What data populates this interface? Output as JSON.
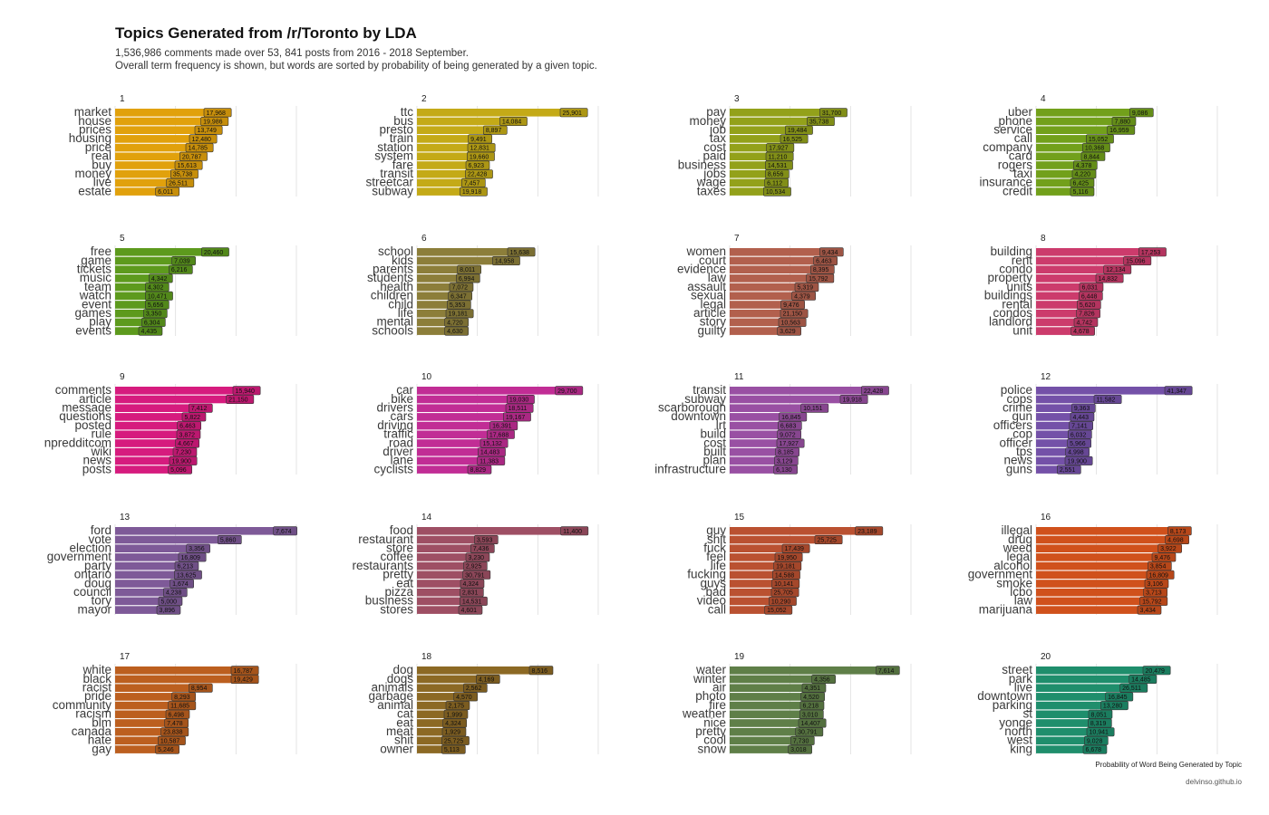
{
  "title": "Topics Generated from /r/Toronto by LDA",
  "subtitle_line1": "1,536,986 comments made over 53, 841 posts from 2016 - 2018 September.",
  "subtitle_line2": "Overall term frequency is shown, but words are sorted by probability of being generated by a given topic.",
  "caption": "delvinso.github.io",
  "chart_data": {
    "type": "bar",
    "orientation": "horizontal",
    "facets": "5 rows x 4 columns",
    "xlabel": "Probability of Word Being Generated by Topic",
    "grid": true,
    "note": "Bar length = probability (estimated, x axis unlabeled); box label = overall term frequency",
    "panels": [
      {
        "topic": "1",
        "color": "#E1A10C",
        "terms": [
          "market",
          "house",
          "prices",
          "housing",
          "price",
          "real",
          "buy",
          "money",
          "live",
          "estate"
        ],
        "probability": [
          0.015,
          0.0145,
          0.0135,
          0.0126,
          0.012,
          0.011,
          0.0102,
          0.0095,
          0.0088,
          0.007
        ],
        "frequency": [
          "17,968",
          "19,986",
          "13,749",
          "12,480",
          "14,785",
          "20,787",
          "15,613",
          "35,738",
          "26,511",
          "6,011"
        ]
      },
      {
        "topic": "2",
        "color": "#C4AA17",
        "terms": [
          "ttc",
          "bus",
          "presto",
          "train",
          "station",
          "system",
          "fare",
          "transit",
          "streetcar",
          "subway"
        ],
        "probability": [
          0.024,
          0.014,
          0.0113,
          0.0088,
          0.0087,
          0.0086,
          0.0084,
          0.0083,
          0.0077,
          0.0074
        ],
        "frequency": [
          "25,901",
          "14,084",
          "8,897",
          "9,491",
          "12,831",
          "19,660",
          "6,923",
          "22,428",
          "7,457",
          "19,918"
        ]
      },
      {
        "topic": "3",
        "color": "#93A11A",
        "terms": [
          "pay",
          "money",
          "job",
          "tax",
          "cost",
          "paid",
          "business",
          "jobs",
          "wage",
          "taxes"
        ],
        "probability": [
          0.0152,
          0.0131,
          0.0095,
          0.0087,
          0.0064,
          0.0063,
          0.0062,
          0.0062,
          0.0061,
          0.0059
        ],
        "frequency": [
          "31,700",
          "35,738",
          "19,484",
          "16,525",
          "17,927",
          "11,210",
          "14,531",
          "8,656",
          "6,112",
          "10,534"
        ]
      },
      {
        "topic": "4",
        "color": "#72A01B",
        "terms": [
          "uber",
          "phone",
          "service",
          "call",
          "company",
          "card",
          "rogers",
          "taxi",
          "insurance",
          "credit"
        ],
        "probability": [
          0.0158,
          0.0129,
          0.0121,
          0.0086,
          0.008,
          0.0078,
          0.0065,
          0.0063,
          0.006,
          0.006
        ],
        "frequency": [
          "9,086",
          "7,880",
          "16,959",
          "15,052",
          "10,368",
          "8,844",
          "4,378",
          "4,220",
          "6,425",
          "5,116"
        ]
      },
      {
        "topic": "5",
        "color": "#5D9A1D",
        "terms": [
          "free",
          "game",
          "tickets",
          "music",
          "team",
          "watch",
          "event",
          "games",
          "play",
          "events"
        ],
        "probability": [
          0.0146,
          0.0097,
          0.0092,
          0.0059,
          0.0053,
          0.0053,
          0.0053,
          0.005,
          0.0047,
          0.0042
        ],
        "frequency": [
          "20,460",
          "7,039",
          "6,216",
          "4,342",
          "4,302",
          "10,471",
          "5,656",
          "3,350",
          "6,304",
          "4,435"
        ]
      },
      {
        "topic": "6",
        "color": "#8C7E3A",
        "terms": [
          "school",
          "kids",
          "parents",
          "students",
          "health",
          "children",
          "child",
          "life",
          "mental",
          "schools"
        ],
        "probability": [
          0.0153,
          0.0128,
          0.007,
          0.0068,
          0.0057,
          0.0055,
          0.0053,
          0.0051,
          0.0049,
          0.0049
        ],
        "frequency": [
          "15,638",
          "14,958",
          "8,011",
          "6,994",
          "7,072",
          "6,347",
          "5,353",
          "19,181",
          "4,720",
          "4,630"
        ]
      },
      {
        "topic": "7",
        "color": "#B2604D",
        "terms": [
          "women",
          "court",
          "evidence",
          "law",
          "assault",
          "sexual",
          "legal",
          "article",
          "story",
          "guilty"
        ],
        "probability": [
          0.0152,
          0.0142,
          0.0137,
          0.013,
          0.0111,
          0.0106,
          0.0088,
          0.0087,
          0.0084,
          0.0082
        ],
        "frequency": [
          "9,434",
          "6,463",
          "8,395",
          "15,792",
          "5,319",
          "4,379",
          "9,476",
          "21,150",
          "10,563",
          "3,629"
        ]
      },
      {
        "topic": "8",
        "color": "#CC3B6C",
        "terms": [
          "building",
          "rent",
          "condo",
          "property",
          "units",
          "buildings",
          "rental",
          "condos",
          "landlord",
          "unit"
        ],
        "probability": [
          0.0173,
          0.0148,
          0.0115,
          0.0102,
          0.0075,
          0.0074,
          0.0071,
          0.007,
          0.0066,
          0.0061
        ],
        "frequency": [
          "17,253",
          "15,096",
          "12,134",
          "14,832",
          "6,031",
          "6,448",
          "5,620",
          "7,826",
          "4,742",
          "4,678"
        ]
      },
      {
        "topic": "9",
        "color": "#D61B7E",
        "terms": [
          "comments",
          "article",
          "message",
          "questions",
          "posted",
          "rule",
          "npredditcom",
          "wiki",
          "news",
          "posts"
        ],
        "probability": [
          0.0198,
          0.0187,
          0.0125,
          0.0114,
          0.0106,
          0.0105,
          0.0103,
          0.0099,
          0.0093,
          0.0091
        ],
        "frequency": [
          "15,940",
          "21,150",
          "7,412",
          "5,822",
          "6,463",
          "3,872",
          "4,667",
          "7,230",
          "19,900",
          "5,096"
        ]
      },
      {
        "topic": "10",
        "color": "#C12D95",
        "terms": [
          "car",
          "bike",
          "drivers",
          "cars",
          "driving",
          "traffic",
          "road",
          "driver",
          "lane",
          "cyclists"
        ],
        "probability": [
          0.0232,
          0.0152,
          0.015,
          0.0146,
          0.0124,
          0.0119,
          0.0108,
          0.0104,
          0.0103,
          0.0087
        ],
        "frequency": [
          "29,700",
          "19,030",
          "18,511",
          "19,167",
          "16,391",
          "17,688",
          "15,132",
          "14,483",
          "11,383",
          "8,829"
        ]
      },
      {
        "topic": "11",
        "color": "#9950A3",
        "terms": [
          "transit",
          "subway",
          "scarborough",
          "downtown",
          "lrt",
          "build",
          "cost",
          "built",
          "plan",
          "infrastructure"
        ],
        "probability": [
          0.0221,
          0.0186,
          0.0121,
          0.0085,
          0.0083,
          0.0082,
          0.0081,
          0.0079,
          0.0077,
          0.0076
        ],
        "frequency": [
          "22,428",
          "19,918",
          "10,151",
          "16,845",
          "6,683",
          "9,072",
          "17,927",
          "8,185",
          "3,129",
          "6,130"
        ]
      },
      {
        "topic": "12",
        "color": "#7451A8",
        "terms": [
          "police",
          "cops",
          "crime",
          "gun",
          "officers",
          "cop",
          "officer",
          "tps",
          "news",
          "guns"
        ],
        "probability": [
          0.0216,
          0.0099,
          0.0062,
          0.006,
          0.0058,
          0.0056,
          0.0055,
          0.0052,
          0.0051,
          0.0038
        ],
        "frequency": [
          "41,347",
          "11,582",
          "9,363",
          "4,443",
          "7,141",
          "6,032",
          "5,966",
          "4,998",
          "19,900",
          "2,551"
        ]
      },
      {
        "topic": "13",
        "color": "#7E5A98",
        "terms": [
          "ford",
          "vote",
          "election",
          "government",
          "party",
          "ontario",
          "doug",
          "council",
          "tory",
          "mayor"
        ],
        "probability": [
          0.0265,
          0.0173,
          0.0121,
          0.0108,
          0.0102,
          0.0101,
          0.0094,
          0.0083,
          0.0075,
          0.0072
        ],
        "frequency": [
          "7,674",
          "5,860",
          "3,356",
          "16,809",
          "6,213",
          "13,625",
          "1,674",
          "4,238",
          "5,000",
          "3,896"
        ]
      },
      {
        "topic": "14",
        "color": "#9E4F64",
        "terms": [
          "food",
          "restaurant",
          "store",
          "coffee",
          "restaurants",
          "pretty",
          "eat",
          "pizza",
          "business",
          "stores"
        ],
        "probability": [
          0.0241,
          0.0098,
          0.0092,
          0.0084,
          0.008,
          0.0079,
          0.0075,
          0.0074,
          0.0074,
          0.0072
        ],
        "frequency": [
          "11,400",
          "3,593",
          "7,436",
          "3,230",
          "2,925",
          "30,791",
          "4,324",
          "2,831",
          "14,531",
          "4,601"
        ]
      },
      {
        "topic": "15",
        "color": "#BA5131",
        "terms": [
          "guy",
          "shit",
          "fuck",
          "feel",
          "life",
          "fucking",
          "guys",
          "bad",
          "video",
          "call"
        ],
        "probability": [
          0.0211,
          0.0144,
          0.009,
          0.0078,
          0.0076,
          0.0074,
          0.0073,
          0.0072,
          0.0068,
          0.0061
        ],
        "frequency": [
          "23,189",
          "25,725",
          "17,439",
          "19,950",
          "19,181",
          "14,588",
          "10,141",
          "25,705",
          "10,290",
          "15,052"
        ]
      },
      {
        "topic": "16",
        "color": "#D0511C",
        "terms": [
          "illegal",
          "drug",
          "weed",
          "legal",
          "alcohol",
          "government",
          "smoke",
          "lcbo",
          "law",
          "marijuana"
        ],
        "probability": [
          0.0221,
          0.0217,
          0.0205,
          0.0195,
          0.0188,
          0.0186,
          0.0183,
          0.0181,
          0.0175,
          0.0171
        ],
        "frequency": [
          "8,173",
          "4,698",
          "3,922",
          "9,476",
          "3,854",
          "16,809",
          "3,106",
          "3,713",
          "15,792",
          "3,434"
        ]
      },
      {
        "topic": "17",
        "color": "#BC5F1F",
        "terms": [
          "white",
          "black",
          "racist",
          "pride",
          "community",
          "racism",
          "blm",
          "canada",
          "hate",
          "gay"
        ],
        "probability": [
          0.0195,
          0.0195,
          0.0125,
          0.0097,
          0.0091,
          0.0087,
          0.0085,
          0.0079,
          0.0074,
          0.007
        ],
        "frequency": [
          "16,787",
          "19,429",
          "8,954",
          "8,293",
          "11,685",
          "6,498",
          "7,478",
          "23,838",
          "10,587",
          "5,246"
        ]
      },
      {
        "topic": "18",
        "color": "#8C6924",
        "terms": [
          "dog",
          "dogs",
          "animals",
          "garbage",
          "animal",
          "cat",
          "eat",
          "meat",
          "shit",
          "owner"
        ],
        "probability": [
          0.0189,
          0.0101,
          0.008,
          0.0064,
          0.0051,
          0.0048,
          0.0046,
          0.0045,
          0.0044,
          0.0044
        ],
        "frequency": [
          "8,516",
          "4,169",
          "2,562",
          "4,570",
          "2,175",
          "1,999",
          "4,324",
          "1,929",
          "25,725",
          "5,113"
        ]
      },
      {
        "topic": "19",
        "color": "#5F7F48",
        "terms": [
          "water",
          "winter",
          "air",
          "photo",
          "fire",
          "weather",
          "nice",
          "pretty",
          "cool",
          "snow"
        ],
        "probability": [
          0.0245,
          0.0139,
          0.0123,
          0.0121,
          0.012,
          0.0119,
          0.0117,
          0.0112,
          0.0104,
          0.01
        ],
        "frequency": [
          "7,614",
          "4,356",
          "4,351",
          "4,520",
          "6,218",
          "3,010",
          "14,407",
          "30,791",
          "7,730",
          "3,018"
        ]
      },
      {
        "topic": "20",
        "color": "#1F8E6C",
        "terms": [
          "street",
          "park",
          "live",
          "downtown",
          "parking",
          "st",
          "yonge",
          "north",
          "west",
          "king"
        ],
        "probability": [
          0.018,
          0.0157,
          0.0142,
          0.0118,
          0.011,
          0.009,
          0.0089,
          0.0087,
          0.0083,
          0.0081
        ],
        "frequency": [
          "20,479",
          "14,485",
          "26,511",
          "16,845",
          "13,280",
          "8,051",
          "8,319",
          "10,941",
          "9,028",
          "6,678"
        ]
      }
    ]
  }
}
